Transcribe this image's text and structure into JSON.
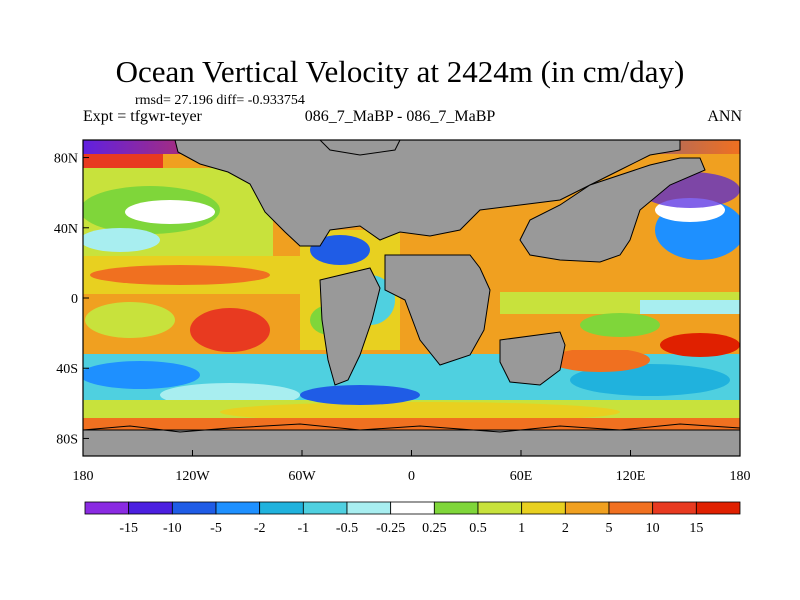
{
  "title": "Ocean Vertical Velocity at 2424m (in cm/day)",
  "stats": "rmsd= 27.196 diff= -0.933754",
  "left_label": "Expt = tfgwr-teyer",
  "center_label": "086_7_MaBP - 086_7_MaBP",
  "right_label": "ANN",
  "chart_data": {
    "type": "heatmap",
    "projection": "cylindrical-equidistant",
    "x_ticks": [
      "180",
      "120W",
      "60W",
      "0",
      "60E",
      "120E",
      "180"
    ],
    "y_ticks": [
      "80N",
      "40N",
      "0",
      "40S",
      "80S"
    ],
    "land_color": "#999999",
    "colorbar": {
      "labels": [
        "-15",
        "-10",
        "-5",
        "-2",
        "-1",
        "-0.5",
        "-0.25",
        "0.25",
        "0.5",
        "1",
        "2",
        "5",
        "10",
        "15"
      ],
      "colors": [
        "#8a2be2",
        "#4b1fe0",
        "#1f5ce6",
        "#1e90ff",
        "#20b2dd",
        "#4fd0e0",
        "#a8eef0",
        "#ffffff",
        "#7fd63a",
        "#c8e23c",
        "#e8d020",
        "#f0a020",
        "#f07020",
        "#e83a20",
        "#e02000"
      ]
    }
  }
}
